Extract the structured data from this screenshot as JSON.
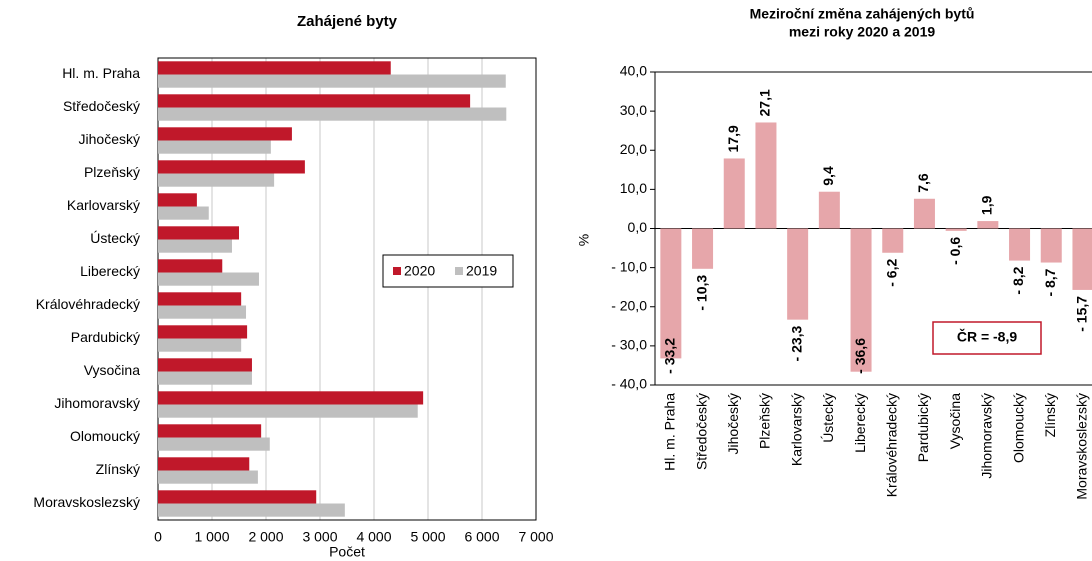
{
  "chart_data": [
    {
      "type": "hbar",
      "title": "Zahájené byty",
      "xlabel": "Počet",
      "categories": [
        "Hl. m. Praha",
        "Středočeský",
        "Jihočeský",
        "Plzeňský",
        "Karlovarský",
        "Ústecký",
        "Liberecký",
        "Královéhradecký",
        "Pardubický",
        "Vysočina",
        "Jihomoravský",
        "Olomoucký",
        "Zlínský",
        "Moravskoslezský"
      ],
      "series": [
        {
          "name": "2020",
          "color": "#c0182a",
          "values": [
            4310,
            5780,
            2480,
            2720,
            720,
            1500,
            1190,
            1540,
            1650,
            1740,
            4910,
            1910,
            1690,
            2930
          ]
        },
        {
          "name": "2019",
          "color": "#bfbfbf",
          "values": [
            6440,
            6450,
            2090,
            2150,
            940,
            1370,
            1870,
            1630,
            1540,
            1740,
            4810,
            2070,
            1850,
            3460
          ]
        }
      ],
      "xlim": [
        0,
        7000
      ],
      "xticks": [
        0,
        {
          "value": 1000,
          "label": "1 000"
        },
        {
          "value": 2000,
          "label": "2 000"
        },
        {
          "value": 3000,
          "label": "3 000"
        },
        {
          "value": 4000,
          "label": "4 000"
        },
        {
          "value": 5000,
          "label": "5 000"
        },
        {
          "value": 6000,
          "label": "6 000"
        },
        {
          "value": 7000,
          "label": "7 000"
        }
      ],
      "grid": true,
      "legend": "right"
    },
    {
      "type": "bar",
      "title": [
        "Meziroční změna zahájených bytů",
        "mezi roky 2020 a 2019"
      ],
      "ylabel": "%",
      "annotation": "ČR = -8,9",
      "categories": [
        "Hl. m. Praha",
        "Středočeský",
        "Jihočeský",
        "Plzeňský",
        "Karlovarský",
        "Ústecký",
        "Liberecký",
        "Královéhradecký",
        "Pardubický",
        "Vysočina",
        "Jihomoravský",
        "Olomoucký",
        "Zlínský",
        "Moravskoslezský"
      ],
      "values": [
        -33.2,
        -10.3,
        17.9,
        27.1,
        -23.3,
        9.4,
        -36.6,
        -6.2,
        7.6,
        -0.6,
        1.9,
        -8.2,
        -8.7,
        -15.7
      ],
      "value_labels": [
        "- 33,2",
        "- 10,3",
        "17,9",
        "27,1",
        "- 23,3",
        "9,4",
        "- 36,6",
        "- 6,2",
        "7,6",
        "- 0,6",
        "1,9",
        "- 8,2",
        "- 8,7",
        "- 15,7"
      ],
      "color": "#e6a6aa",
      "label_color": "#c0182a",
      "ylim": [
        -40,
        40
      ],
      "yticks": [
        {
          "value": -40,
          "label": "- 40,0"
        },
        {
          "value": -30,
          "label": "- 30,0"
        },
        {
          "value": -20,
          "label": "- 20,0"
        },
        {
          "value": -10,
          "label": "- 10,0"
        },
        {
          "value": 0,
          "label": "0,0"
        },
        {
          "value": 10,
          "label": "10,0"
        },
        {
          "value": 20,
          "label": "20,0"
        },
        {
          "value": 30,
          "label": "30,0"
        },
        {
          "value": 40,
          "label": "40,0"
        }
      ]
    }
  ]
}
